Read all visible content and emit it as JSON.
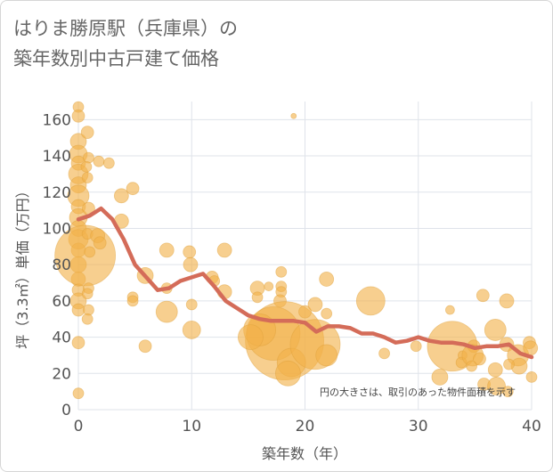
{
  "colors": {
    "bubble": "#f2b24a",
    "bubble_edge": "#e0a23c",
    "line": "#d46c59",
    "grid": "#dfe3ea"
  },
  "chart_data": {
    "type": "scatter",
    "title_lines": [
      "はりま勝原駅（兵庫県）の",
      "築年数別中古戸建て価格"
    ],
    "xlabel": "築年数（年）",
    "ylabel": "坪（3.3㎡）単価（万円）",
    "xlim": [
      0,
      40
    ],
    "ylim": [
      0,
      170
    ],
    "xticks": [
      0,
      10,
      20,
      30,
      40
    ],
    "yticks": [
      0,
      20,
      40,
      60,
      80,
      100,
      120,
      140,
      160
    ],
    "note": "円の大きさは、取引のあった物件面積を示す",
    "trend": {
      "x": [
        0,
        1,
        2,
        3,
        4,
        5,
        6,
        7,
        8,
        9,
        10,
        11,
        12,
        13,
        14,
        15,
        16,
        17,
        18,
        19,
        20,
        21,
        22,
        23,
        24,
        25,
        26,
        27,
        28,
        29,
        30,
        31,
        32,
        33,
        34,
        35,
        36,
        37,
        38,
        39,
        40
      ],
      "y": [
        105,
        107,
        111,
        105,
        94,
        80,
        73,
        66,
        67,
        71,
        73,
        75,
        68,
        60,
        56,
        52,
        50,
        49,
        49,
        49,
        48,
        43,
        46,
        46,
        45,
        42,
        42,
        40,
        37,
        38,
        40,
        38,
        37,
        37,
        36,
        34,
        35,
        35,
        36,
        31,
        29
      ]
    },
    "points": [
      {
        "x": 0,
        "y": 167,
        "s": 6
      },
      {
        "x": 0,
        "y": 162,
        "s": 7
      },
      {
        "x": 0,
        "y": 148,
        "s": 9
      },
      {
        "x": 0,
        "y": 141,
        "s": 10
      },
      {
        "x": 0,
        "y": 136,
        "s": 8
      },
      {
        "x": 0,
        "y": 130,
        "s": 11
      },
      {
        "x": 0,
        "y": 124,
        "s": 9
      },
      {
        "x": 0,
        "y": 118,
        "s": 12
      },
      {
        "x": 0,
        "y": 112,
        "s": 8
      },
      {
        "x": 0,
        "y": 106,
        "s": 10
      },
      {
        "x": 0,
        "y": 100,
        "s": 9
      },
      {
        "x": 0,
        "y": 94,
        "s": 11
      },
      {
        "x": 0,
        "y": 88,
        "s": 8
      },
      {
        "x": 0,
        "y": 80,
        "s": 9
      },
      {
        "x": 0,
        "y": 72,
        "s": 8
      },
      {
        "x": 0,
        "y": 66,
        "s": 7
      },
      {
        "x": 0,
        "y": 60,
        "s": 9
      },
      {
        "x": 0,
        "y": 55,
        "s": 7
      },
      {
        "x": 0,
        "y": 37,
        "s": 7
      },
      {
        "x": 0,
        "y": 9,
        "s": 6
      },
      {
        "x": 0.6,
        "y": 85,
        "s": 34
      },
      {
        "x": 0.8,
        "y": 153,
        "s": 7
      },
      {
        "x": 0.9,
        "y": 139,
        "s": 6
      },
      {
        "x": 0.7,
        "y": 134,
        "s": 6
      },
      {
        "x": 0.8,
        "y": 128,
        "s": 6
      },
      {
        "x": 0.9,
        "y": 111,
        "s": 7
      },
      {
        "x": 0.8,
        "y": 97,
        "s": 6
      },
      {
        "x": 1,
        "y": 87,
        "s": 6
      },
      {
        "x": 0.9,
        "y": 67,
        "s": 6
      },
      {
        "x": 0.8,
        "y": 64,
        "s": 6
      },
      {
        "x": 0.9,
        "y": 55,
        "s": 6
      },
      {
        "x": 0.8,
        "y": 50,
        "s": 6
      },
      {
        "x": 1.8,
        "y": 137,
        "s": 6
      },
      {
        "x": 1.7,
        "y": 96,
        "s": 8
      },
      {
        "x": 1.9,
        "y": 92,
        "s": 7
      },
      {
        "x": 2.7,
        "y": 136,
        "s": 6
      },
      {
        "x": 3.8,
        "y": 118,
        "s": 8
      },
      {
        "x": 4.8,
        "y": 122,
        "s": 7
      },
      {
        "x": 3.8,
        "y": 104,
        "s": 8
      },
      {
        "x": 4.8,
        "y": 62,
        "s": 6
      },
      {
        "x": 4.8,
        "y": 60,
        "s": 6
      },
      {
        "x": 5.9,
        "y": 74,
        "s": 9
      },
      {
        "x": 5.9,
        "y": 35,
        "s": 7
      },
      {
        "x": 7.8,
        "y": 88,
        "s": 8
      },
      {
        "x": 7.8,
        "y": 67,
        "s": 6
      },
      {
        "x": 7.8,
        "y": 54,
        "s": 12
      },
      {
        "x": 9.8,
        "y": 87,
        "s": 7
      },
      {
        "x": 9.9,
        "y": 80,
        "s": 8
      },
      {
        "x": 10,
        "y": 58,
        "s": 6
      },
      {
        "x": 10,
        "y": 44,
        "s": 10
      },
      {
        "x": 11.8,
        "y": 73,
        "s": 7
      },
      {
        "x": 12,
        "y": 71,
        "s": 6
      },
      {
        "x": 12.9,
        "y": 88,
        "s": 8
      },
      {
        "x": 12.9,
        "y": 65,
        "s": 8
      },
      {
        "x": 15.8,
        "y": 67,
        "s": 8
      },
      {
        "x": 15.8,
        "y": 62,
        "s": 6
      },
      {
        "x": 17.9,
        "y": 76,
        "s": 6
      },
      {
        "x": 17.9,
        "y": 68,
        "s": 6
      },
      {
        "x": 16.8,
        "y": 68,
        "s": 5
      },
      {
        "x": 17.9,
        "y": 65,
        "s": 6
      },
      {
        "x": 17.8,
        "y": 60,
        "s": 7
      },
      {
        "x": 19,
        "y": 162,
        "s": 3
      },
      {
        "x": 18.2,
        "y": 38,
        "s": 44
      },
      {
        "x": 17.2,
        "y": 42,
        "s": 30
      },
      {
        "x": 16,
        "y": 44,
        "s": 18
      },
      {
        "x": 18.8,
        "y": 26,
        "s": 16
      },
      {
        "x": 15.2,
        "y": 40,
        "s": 14
      },
      {
        "x": 18.5,
        "y": 20,
        "s": 14
      },
      {
        "x": 20,
        "y": 54,
        "s": 7
      },
      {
        "x": 20.9,
        "y": 58,
        "s": 8
      },
      {
        "x": 21.9,
        "y": 53,
        "s": 6
      },
      {
        "x": 21.9,
        "y": 72,
        "s": 8
      },
      {
        "x": 20.9,
        "y": 36,
        "s": 28
      },
      {
        "x": 21.9,
        "y": 30,
        "s": 12
      },
      {
        "x": 25.8,
        "y": 60,
        "s": 16
      },
      {
        "x": 27,
        "y": 31,
        "s": 6
      },
      {
        "x": 29.8,
        "y": 35,
        "s": 6
      },
      {
        "x": 33,
        "y": 35,
        "s": 28
      },
      {
        "x": 32.8,
        "y": 55,
        "s": 5
      },
      {
        "x": 33.9,
        "y": 30,
        "s": 5
      },
      {
        "x": 31.9,
        "y": 18,
        "s": 9
      },
      {
        "x": 33.8,
        "y": 26,
        "s": 6
      },
      {
        "x": 35.7,
        "y": 63,
        "s": 7
      },
      {
        "x": 34.9,
        "y": 35,
        "s": 7
      },
      {
        "x": 34.8,
        "y": 30,
        "s": 12
      },
      {
        "x": 35.4,
        "y": 28,
        "s": 7
      },
      {
        "x": 34.7,
        "y": 24,
        "s": 6
      },
      {
        "x": 36.8,
        "y": 44,
        "s": 12
      },
      {
        "x": 36.8,
        "y": 22,
        "s": 8
      },
      {
        "x": 35.8,
        "y": 14,
        "s": 7
      },
      {
        "x": 37.8,
        "y": 60,
        "s": 8
      },
      {
        "x": 36.9,
        "y": 13,
        "s": 10
      },
      {
        "x": 37.8,
        "y": 36,
        "s": 8
      },
      {
        "x": 37.9,
        "y": 10,
        "s": 6
      },
      {
        "x": 38.8,
        "y": 30,
        "s": 12
      },
      {
        "x": 38.9,
        "y": 24,
        "s": 9
      },
      {
        "x": 39.8,
        "y": 37,
        "s": 7
      },
      {
        "x": 39.9,
        "y": 34,
        "s": 8
      },
      {
        "x": 40,
        "y": 18,
        "s": 6
      },
      {
        "x": 38,
        "y": 25,
        "s": 6
      }
    ]
  }
}
